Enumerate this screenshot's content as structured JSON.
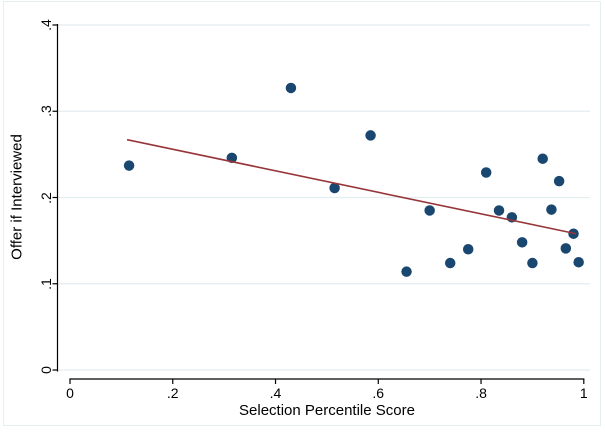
{
  "figure": {
    "background_color": "#ffffff",
    "region_border_color": "#e7f0f1"
  },
  "chart_data": {
    "type": "scatter",
    "title": "",
    "xlabel": "Selection Percentile Score",
    "ylabel": "Offer if Interviewed",
    "xlim": [
      0,
      1
    ],
    "ylim": [
      0,
      0.4
    ],
    "x_ticks": [
      {
        "v": 0,
        "label": "0"
      },
      {
        "v": 0.2,
        "label": ".2"
      },
      {
        "v": 0.4,
        "label": ".4"
      },
      {
        "v": 0.6,
        "label": ".6"
      },
      {
        "v": 0.8,
        "label": ".8"
      },
      {
        "v": 1,
        "label": "1"
      }
    ],
    "y_ticks": [
      {
        "v": 0,
        "label": "0"
      },
      {
        "v": 0.1,
        "label": ".1"
      },
      {
        "v": 0.2,
        "label": ".2"
      },
      {
        "v": 0.3,
        "label": ".3"
      },
      {
        "v": 0.4,
        "label": ".4"
      }
    ],
    "grid": {
      "on": true,
      "y_values": [
        0,
        0.1,
        0.2,
        0.3,
        0.4
      ],
      "color": "#e3eef0"
    },
    "axis_color": "#000000",
    "legend": "none",
    "series": [
      {
        "name": "Offer if Interviewed (scatter)",
        "marker_color": "#1a476f",
        "marker_diameter": 10.5,
        "points": [
          [
            0.115,
            0.237
          ],
          [
            0.315,
            0.246
          ],
          [
            0.43,
            0.327
          ],
          [
            0.515,
            0.211
          ],
          [
            0.585,
            0.272
          ],
          [
            0.655,
            0.114
          ],
          [
            0.7,
            0.185
          ],
          [
            0.74,
            0.124
          ],
          [
            0.775,
            0.14
          ],
          [
            0.81,
            0.229
          ],
          [
            0.835,
            0.185
          ],
          [
            0.86,
            0.177
          ],
          [
            0.88,
            0.148
          ],
          [
            0.9,
            0.124
          ],
          [
            0.92,
            0.245
          ],
          [
            0.937,
            0.186
          ],
          [
            0.952,
            0.219
          ],
          [
            0.965,
            0.141
          ],
          [
            0.98,
            0.158
          ],
          [
            0.99,
            0.125
          ]
        ]
      }
    ],
    "fit_line": {
      "name": "linear fit",
      "color": "#973539",
      "width": 1.6,
      "x_start": 0.111,
      "y_start": 0.267,
      "x_end": 0.985,
      "y_end": 0.158
    }
  }
}
